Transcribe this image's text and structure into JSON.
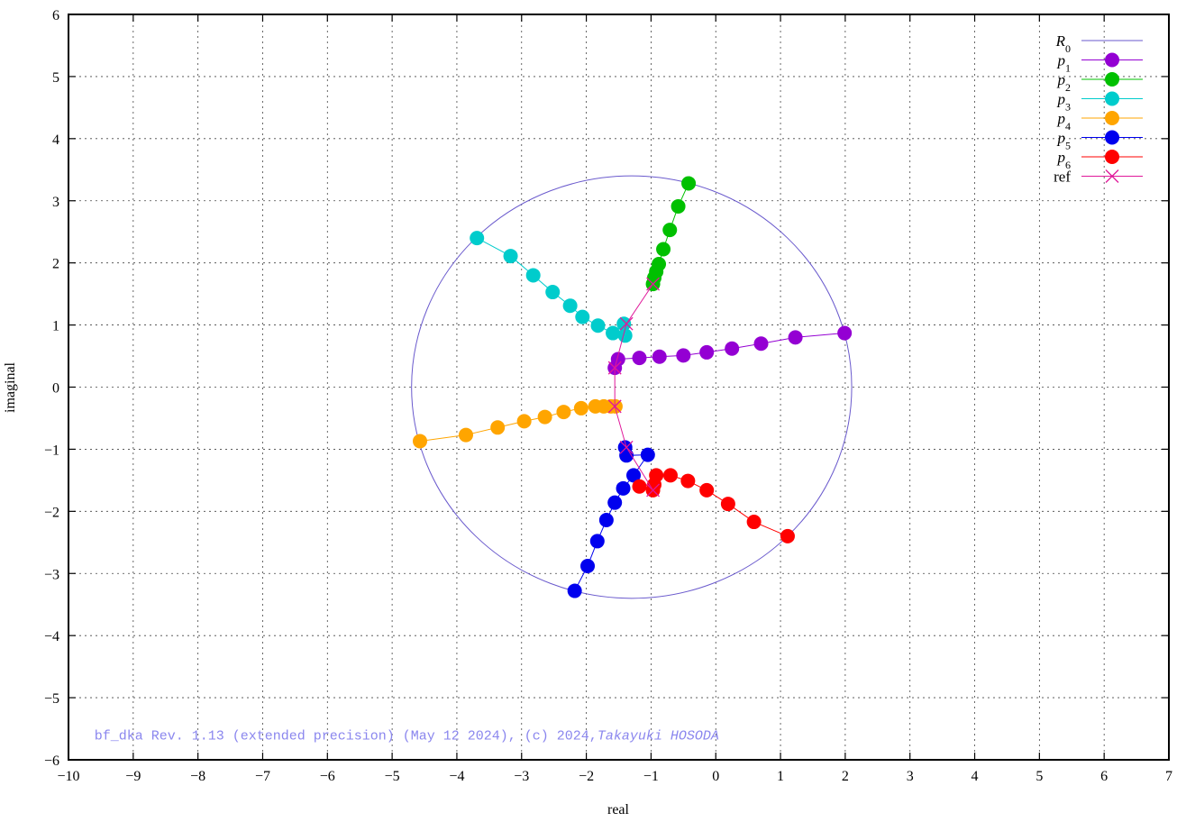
{
  "chart_data": {
    "type": "scatter",
    "xlabel": "real",
    "ylabel": "imaginal",
    "xlim": [
      -10,
      7
    ],
    "ylim": [
      -6,
      6
    ],
    "xticks": [
      -10,
      -9,
      -8,
      -7,
      -6,
      -5,
      -4,
      -3,
      -2,
      -1,
      0,
      1,
      2,
      3,
      4,
      5,
      6,
      7
    ],
    "yticks": [
      -6,
      -5,
      -4,
      -3,
      -2,
      -1,
      0,
      1,
      2,
      3,
      4,
      5,
      6
    ],
    "grid": true,
    "legend_position": "top-right",
    "circle": {
      "name": "R",
      "subscript": "0",
      "center": [
        -1.3,
        0.0
      ],
      "radius": 3.4,
      "color": "#6a5acd"
    },
    "series": [
      {
        "name": "p",
        "subscript": "1",
        "color": "#9400d3",
        "marker": "circle",
        "x": [
          -1.56,
          -1.51,
          -1.18,
          -0.87,
          -0.5,
          -0.14,
          0.25,
          0.7,
          1.23,
          1.99
        ],
        "y": [
          0.31,
          0.45,
          0.47,
          0.49,
          0.51,
          0.56,
          0.62,
          0.7,
          0.8,
          0.87
        ]
      },
      {
        "name": "p",
        "subscript": "2",
        "color": "#00c000",
        "marker": "circle",
        "x": [
          -0.97,
          -0.95,
          -0.92,
          -0.88,
          -0.81,
          -0.71,
          -0.58,
          -0.42
        ],
        "y": [
          1.66,
          1.76,
          1.86,
          1.98,
          2.22,
          2.53,
          2.91,
          3.28
        ]
      },
      {
        "name": "p",
        "subscript": "3",
        "color": "#00cccc",
        "marker": "circle",
        "x": [
          -1.4,
          -1.42,
          -1.59,
          -1.82,
          -2.06,
          -2.25,
          -2.52,
          -2.82,
          -3.17,
          -3.69
        ],
        "y": [
          0.83,
          1.02,
          0.87,
          0.99,
          1.13,
          1.31,
          1.53,
          1.8,
          2.11,
          2.4
        ]
      },
      {
        "name": "p",
        "subscript": "4",
        "color": "#ffa500",
        "marker": "circle",
        "x": [
          -1.55,
          -1.62,
          -1.73,
          -1.86,
          -2.08,
          -2.35,
          -2.64,
          -2.96,
          -3.37,
          -3.86,
          -4.57
        ],
        "y": [
          -0.31,
          -0.31,
          -0.31,
          -0.31,
          -0.34,
          -0.4,
          -0.48,
          -0.55,
          -0.65,
          -0.77,
          -0.87
        ]
      },
      {
        "name": "p",
        "subscript": "5",
        "color": "#0000ee",
        "marker": "circle",
        "x": [
          -1.4,
          -1.38,
          -1.05,
          -1.27,
          -1.43,
          -1.56,
          -1.69,
          -1.83,
          -1.98,
          -2.18
        ],
        "y": [
          -0.97,
          -1.1,
          -1.09,
          -1.42,
          -1.63,
          -1.86,
          -2.14,
          -2.48,
          -2.88,
          -3.28
        ]
      },
      {
        "name": "p",
        "subscript": "6",
        "color": "#ff0000",
        "marker": "circle",
        "x": [
          -0.97,
          -1.18,
          -0.95,
          -0.92,
          -0.7,
          -0.43,
          -0.14,
          0.19,
          0.59,
          1.11
        ],
        "y": [
          -1.66,
          -1.6,
          -1.57,
          -1.42,
          -1.42,
          -1.51,
          -1.66,
          -1.88,
          -2.17,
          -2.4
        ]
      },
      {
        "name": "ref",
        "subscript": "",
        "color": "#e0189a",
        "marker": "cross",
        "x": [
          -1.56,
          -1.38,
          -0.97,
          -1.56,
          -1.38,
          -0.97
        ],
        "y": [
          0.31,
          1.02,
          1.66,
          -0.31,
          -0.97,
          -1.66
        ],
        "path": [
          [
            -0.97,
            1.66
          ],
          [
            -1.38,
            1.02
          ],
          [
            -1.56,
            0.31
          ],
          [
            -1.56,
            -0.31
          ],
          [
            -1.38,
            -0.97
          ],
          [
            -0.97,
            -1.66
          ]
        ]
      }
    ],
    "annotation": {
      "text": "bf_dka Rev. 1.13 (extended precision) (May 12 2024), (c) 2024,",
      "author": "Takayuki HOSODA",
      "at": [
        -9.6,
        -5.6
      ]
    }
  }
}
